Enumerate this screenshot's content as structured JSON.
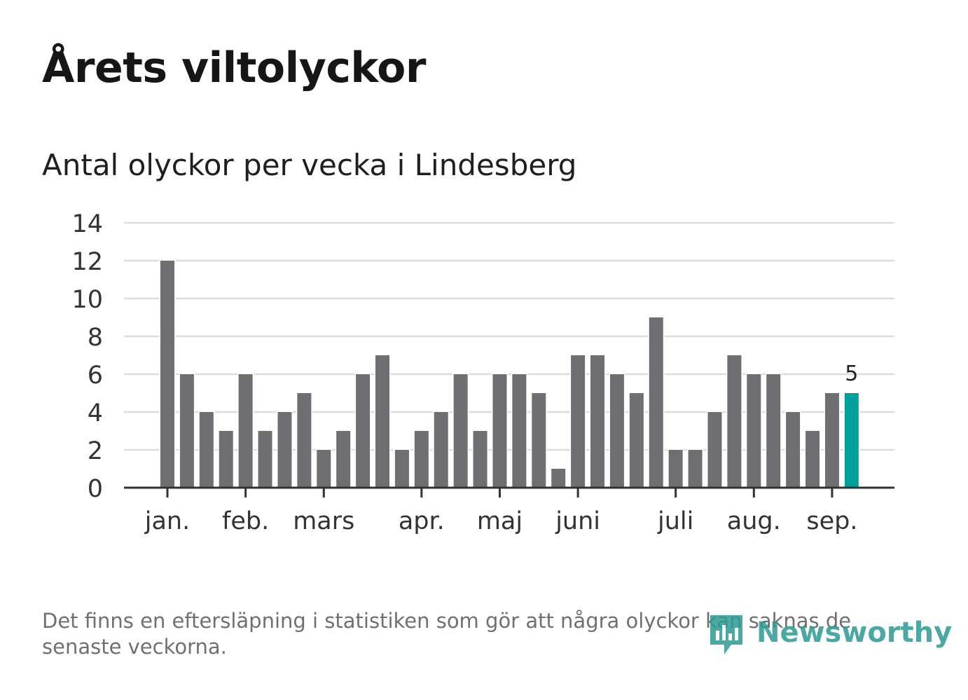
{
  "header": {
    "title": "Årets viltolyckor",
    "subtitle": "Antal olyckor per vecka i Lindesberg"
  },
  "footer": {
    "note": "Det finns en eftersläpning i statistiken som gör att några olyckor kan saknas de senaste veckorna.",
    "brand": "Newsworthy",
    "brand_icon": "bar-chart-bubble-icon"
  },
  "colors": {
    "bar": "#6e6e73",
    "highlight": "#00a19a",
    "grid": "#dddddd",
    "axis": "#333333",
    "brand": "#2d9a93"
  },
  "chart_data": {
    "type": "bar",
    "title": "Antal olyckor per vecka i Lindesberg",
    "xlabel": "",
    "ylabel": "",
    "ylim": [
      0,
      14
    ],
    "yticks": [
      0,
      2,
      4,
      6,
      8,
      10,
      12,
      14
    ],
    "grid": true,
    "values": [
      12,
      6,
      4,
      3,
      6,
      3,
      4,
      5,
      2,
      3,
      6,
      7,
      2,
      3,
      4,
      6,
      3,
      6,
      6,
      5,
      1,
      7,
      7,
      6,
      5,
      9,
      2,
      2,
      4,
      7,
      6,
      6,
      4,
      3,
      5,
      5
    ],
    "highlight_index": 35,
    "highlight_label": "5",
    "month_labels": [
      {
        "label": "jan.",
        "bar_index": 0
      },
      {
        "label": "feb.",
        "bar_index": 4
      },
      {
        "label": "mars",
        "bar_index": 8
      },
      {
        "label": "apr.",
        "bar_index": 13
      },
      {
        "label": "maj",
        "bar_index": 17
      },
      {
        "label": "juni",
        "bar_index": 21
      },
      {
        "label": "juli",
        "bar_index": 26
      },
      {
        "label": "aug.",
        "bar_index": 30
      },
      {
        "label": "sep.",
        "bar_index": 34
      }
    ]
  }
}
